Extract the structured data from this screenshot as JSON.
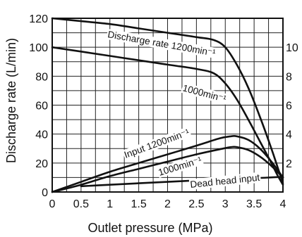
{
  "chart_data": {
    "type": "line",
    "title": "",
    "xlabel": "Outlet pressure (MPa)",
    "ylabel": "Discharge rate (L/min)",
    "y2label": "",
    "xlim": [
      0,
      4
    ],
    "ylim": [
      0,
      120
    ],
    "y2lim": [
      0,
      12
    ],
    "grid": true,
    "x_ticks": [
      0,
      0.5,
      1,
      1.5,
      2,
      2.5,
      3,
      3.5,
      4
    ],
    "x_tick_labels": [
      "0",
      "0.5",
      "1",
      "1.5",
      "2",
      "2.5",
      "3",
      "3.5",
      "4"
    ],
    "y_ticks": [
      0,
      20,
      40,
      60,
      80,
      100,
      120
    ],
    "y_tick_labels": [
      "0",
      "20",
      "40",
      "60",
      "80",
      "100",
      "120"
    ],
    "y2_ticks": [
      2,
      4,
      6,
      8,
      10
    ],
    "y2_tick_labels": [
      "2",
      "4",
      "6",
      "8",
      "10"
    ],
    "series": [
      {
        "name": "Discharge rate 1200min⁻¹",
        "axis": "left",
        "x": [
          0,
          0.5,
          1,
          1.5,
          2,
          2.5,
          2.8,
          3.0,
          3.2,
          3.4,
          3.6,
          3.8,
          3.9,
          4.0
        ],
        "y": [
          120,
          118,
          116,
          113,
          110,
          107,
          105,
          100,
          88,
          72,
          52,
          30,
          18,
          6
        ]
      },
      {
        "name": "1000min⁻¹",
        "axis": "left",
        "x": [
          0,
          0.5,
          1,
          1.5,
          2,
          2.5,
          2.8,
          3.0,
          3.2,
          3.4,
          3.6,
          3.8,
          3.9,
          4.0
        ],
        "y": [
          100,
          97,
          94,
          91,
          88,
          85,
          82,
          75,
          64,
          50,
          35,
          20,
          12,
          5
        ]
      },
      {
        "name": "Input 1200min⁻¹",
        "axis": "right",
        "x": [
          0,
          0.5,
          1,
          1.5,
          2,
          2.5,
          2.9,
          3.1,
          3.2,
          3.4,
          3.6,
          3.8,
          4.0
        ],
        "y": [
          0,
          0.7,
          1.4,
          2.0,
          2.6,
          3.2,
          3.7,
          3.85,
          3.85,
          3.6,
          3.0,
          2.1,
          1.0
        ]
      },
      {
        "name": "1000min⁻¹",
        "axis": "right",
        "x": [
          0,
          0.5,
          1,
          1.5,
          2,
          2.5,
          2.9,
          3.1,
          3.2,
          3.4,
          3.6,
          3.8,
          4.0
        ],
        "y": [
          0,
          0.5,
          1.1,
          1.6,
          2.1,
          2.6,
          2.95,
          3.1,
          3.1,
          2.9,
          2.45,
          1.8,
          1.0
        ]
      },
      {
        "name": "Dead head input",
        "axis": "right",
        "x": [
          0.5,
          1,
          1.5,
          2,
          2.5,
          3,
          3.5,
          4.0
        ],
        "y": [
          0.4,
          0.5,
          0.6,
          0.7,
          0.8,
          0.88,
          0.95,
          1.05
        ]
      }
    ],
    "labels": [
      {
        "text": "Discharge rate 1200min⁻¹",
        "series": 0
      },
      {
        "text": "1000min⁻¹",
        "series": 1
      },
      {
        "text": "Input 1200min⁻¹",
        "series": 2
      },
      {
        "text": "1000min⁻¹",
        "series": 3
      },
      {
        "text": "Dead head input",
        "series": 4
      }
    ]
  }
}
